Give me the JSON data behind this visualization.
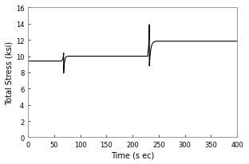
{
  "title": "",
  "xlabel": "Time (s ec)",
  "ylabel": "Total Stress (ksi)",
  "xlim": [
    0,
    400
  ],
  "ylim": [
    0,
    16
  ],
  "xticks": [
    0,
    50,
    100,
    150,
    200,
    250,
    300,
    350,
    400
  ],
  "yticks": [
    0,
    2,
    4,
    6,
    8,
    10,
    12,
    14,
    16
  ],
  "background_color": "#ffffff",
  "plot_bg_color": "#ffffff",
  "line_color": "#000000",
  "plateau1_value": 9.4,
  "plateau1_end": 63,
  "spike1_time": 68,
  "spike1_peak": 10.4,
  "spike1_trough": 7.9,
  "spike1_tau_rise": 1.2,
  "spike1_tau_fall": 1.5,
  "plateau2_value": 10.0,
  "plateau2_end": 229,
  "spike2_time": 232,
  "spike2_peak": 13.9,
  "spike2_trough": 8.8,
  "spike2_tau_rise": 1.2,
  "spike2_tau_fall": 2.5,
  "plateau3_value": 11.85,
  "plateau3_start": 245
}
